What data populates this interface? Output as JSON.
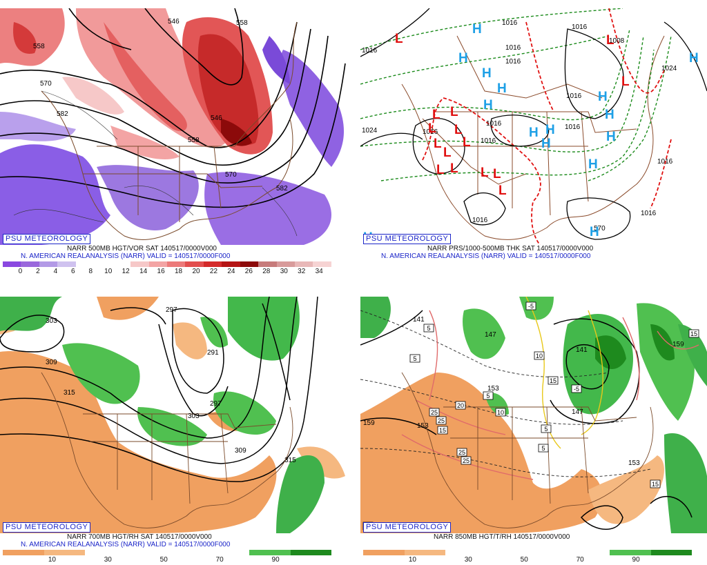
{
  "panels": [
    {
      "id": "vorticity",
      "badge": "PSU METEOROLOGY",
      "line1": "NARR 500MB HGT/VOR SAT 140517/0000V000",
      "line2": "N. AMERICAN REALANALYSIS (NARR) VALID = 140517/0000F000",
      "colorbar_colors": [
        "#8a48e0",
        "#9a68dc",
        "#b39ae6",
        "#cfc2ef",
        "#ffffff",
        "#ffffff",
        "#ffffff",
        "#f6c8c8",
        "#f3a4a4",
        "#ec7a7a",
        "#e24e4e",
        "#d42a2a",
        "#b51414",
        "#8c0a0a",
        "#c77b7b",
        "#d89b9b",
        "#e8b8b8",
        "#f6d3d3"
      ],
      "colorbar_labels": [
        "0",
        "2",
        "4",
        "6",
        "8",
        "10",
        "12",
        "14",
        "16",
        "18",
        "20",
        "22",
        "24",
        "26",
        "28",
        "30",
        "32",
        "34"
      ],
      "contour_labels": [
        "546",
        "558",
        "558",
        "570",
        "582",
        "558",
        "570",
        "582",
        "546"
      ]
    },
    {
      "id": "thickness",
      "badge": "PSU METEOROLOGY",
      "line1": "NARR PRS/1000-500MB THK SAT 140517/0000V000",
      "line2": "N. AMERICAN REALANALYSIS (NARR) VALID = 140517/0000F000",
      "isobar_labels": [
        "1016",
        "1016",
        "1016",
        "1016",
        "1016",
        "1008",
        "1024",
        "1016",
        "1016",
        "1016",
        "1016",
        "1016",
        "1016",
        "1024",
        "1016",
        "570",
        "1016"
      ],
      "highs": [
        "H",
        "H",
        "H",
        "H",
        "H",
        "H",
        "H",
        "H",
        "H",
        "H",
        "H",
        "H",
        "H",
        "H",
        "H"
      ],
      "lows": [
        "L",
        "L",
        "L",
        "L",
        "L",
        "L",
        "L",
        "L",
        "L",
        "L",
        "L",
        "L",
        "L",
        "L",
        "L"
      ]
    },
    {
      "id": "rh700",
      "badge": "PSU METEOROLOGY",
      "line1": "NARR 700MB HGT/RH SAT 140517/0000V000",
      "line2": "N. AMERICAN REALANALYSIS (NARR) VALID = 140517/0000F000",
      "colorbar_colors": [
        "#f0a060",
        "#f5b880",
        "#ffffff",
        "#ffffff",
        "#ffffff",
        "#ffffff",
        "#50c050",
        "#1e8a1e"
      ],
      "colorbar_labels": [
        "10",
        "30",
        "50",
        "70",
        "90"
      ],
      "contour_labels": [
        "303",
        "309",
        "315",
        "297",
        "291",
        "297",
        "303",
        "309",
        "315"
      ]
    },
    {
      "id": "rh850",
      "badge": "PSU METEOROLOGY",
      "line1": "NARR 850MB HGT/T/RH 140517/0000V000",
      "colorbar_colors": [
        "#f0a060",
        "#f5b880",
        "#ffffff",
        "#ffffff",
        "#ffffff",
        "#ffffff",
        "#50c050",
        "#1e8a1e"
      ],
      "colorbar_labels": [
        "10",
        "30",
        "50",
        "70",
        "90"
      ],
      "contour_labels": [
        "141",
        "147",
        "153",
        "159",
        "153",
        "147",
        "153",
        "141",
        "159"
      ],
      "temp_labels": [
        "-5",
        "-5",
        "5",
        "5",
        "5",
        "5",
        "10",
        "10",
        "15",
        "15",
        "15",
        "15",
        "15",
        "20",
        "25",
        "25",
        "25",
        "25",
        "5"
      ]
    }
  ]
}
